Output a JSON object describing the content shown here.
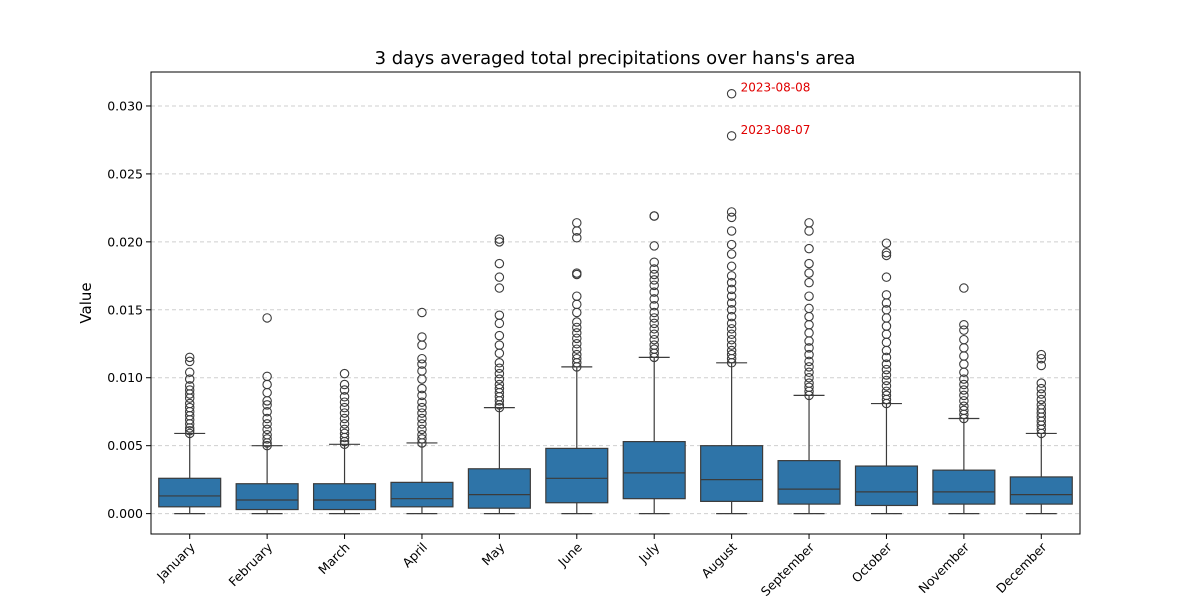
{
  "chart_data": {
    "type": "box",
    "title": "3 days averaged total precipitations over hans's area",
    "xlabel": "",
    "ylabel": "Value",
    "ylim": [
      -0.0015,
      0.0325
    ],
    "yticks": [
      0.0,
      0.005,
      0.01,
      0.015,
      0.02,
      0.025,
      0.03
    ],
    "ytick_labels": [
      "0.000",
      "0.005",
      "0.010",
      "0.015",
      "0.020",
      "0.025",
      "0.030"
    ],
    "grid": "y-dashed",
    "box_color": "#2e74a8",
    "annotation_color": "#e00000",
    "categories": [
      "January",
      "February",
      "March",
      "April",
      "May",
      "June",
      "July",
      "August",
      "September",
      "October",
      "November",
      "December"
    ],
    "boxes": [
      {
        "whislo": 0.0,
        "q1": 0.0005,
        "med": 0.0013,
        "q3": 0.0026,
        "whishi": 0.0059,
        "fliers": [
          0.0059,
          0.0061,
          0.0063,
          0.0066,
          0.0069,
          0.0072,
          0.0075,
          0.0078,
          0.0081,
          0.0085,
          0.0088,
          0.0091,
          0.0094,
          0.0099,
          0.0104,
          0.0112,
          0.0115
        ]
      },
      {
        "whislo": 0.0,
        "q1": 0.0003,
        "med": 0.001,
        "q3": 0.0022,
        "whishi": 0.005,
        "fliers": [
          0.005,
          0.0052,
          0.0055,
          0.0058,
          0.0062,
          0.0066,
          0.007,
          0.0075,
          0.008,
          0.0083,
          0.0089,
          0.0095,
          0.0101,
          0.0144
        ]
      },
      {
        "whislo": 0.0,
        "q1": 0.0003,
        "med": 0.001,
        "q3": 0.0022,
        "whishi": 0.0051,
        "fliers": [
          0.0051,
          0.0053,
          0.0056,
          0.0059,
          0.0062,
          0.0066,
          0.007,
          0.0074,
          0.0078,
          0.0082,
          0.0086,
          0.0091,
          0.0095,
          0.0103
        ]
      },
      {
        "whislo": 0.0,
        "q1": 0.0005,
        "med": 0.0011,
        "q3": 0.0023,
        "whishi": 0.0052,
        "fliers": [
          0.0052,
          0.0055,
          0.0058,
          0.0062,
          0.0066,
          0.007,
          0.0074,
          0.0078,
          0.0082,
          0.0087,
          0.0092,
          0.0099,
          0.0105,
          0.011,
          0.0114,
          0.0124,
          0.013,
          0.0148
        ]
      },
      {
        "whislo": 0.0,
        "q1": 0.0004,
        "med": 0.0014,
        "q3": 0.0033,
        "whishi": 0.0078,
        "fliers": [
          0.0078,
          0.008,
          0.0083,
          0.0086,
          0.0089,
          0.0092,
          0.0095,
          0.0099,
          0.0103,
          0.0107,
          0.0111,
          0.0118,
          0.0124,
          0.0131,
          0.014,
          0.0146,
          0.0166,
          0.0174,
          0.0184,
          0.02,
          0.0202
        ]
      },
      {
        "whislo": 0.0,
        "q1": 0.0008,
        "med": 0.0026,
        "q3": 0.0048,
        "whishi": 0.0108,
        "fliers": [
          0.0108,
          0.0111,
          0.0114,
          0.0117,
          0.0121,
          0.0125,
          0.0129,
          0.0133,
          0.0137,
          0.0141,
          0.0148,
          0.0154,
          0.016,
          0.0176,
          0.0177,
          0.0203,
          0.0208,
          0.0214
        ]
      },
      {
        "whislo": 0.0,
        "q1": 0.0011,
        "med": 0.003,
        "q3": 0.0053,
        "whishi": 0.0115,
        "fliers": [
          0.0115,
          0.0118,
          0.0121,
          0.0124,
          0.0128,
          0.0132,
          0.0136,
          0.014,
          0.0144,
          0.0148,
          0.0153,
          0.0158,
          0.0163,
          0.0168,
          0.0172,
          0.0176,
          0.018,
          0.0185,
          0.0197,
          0.0219,
          0.0219
        ]
      },
      {
        "whislo": 0.0,
        "q1": 0.0009,
        "med": 0.0025,
        "q3": 0.005,
        "whishi": 0.0111,
        "fliers": [
          0.0111,
          0.0114,
          0.0117,
          0.012,
          0.0124,
          0.0128,
          0.0132,
          0.0136,
          0.014,
          0.0145,
          0.015,
          0.0155,
          0.016,
          0.0165,
          0.017,
          0.0175,
          0.0182,
          0.0191,
          0.0198,
          0.0208,
          0.0218,
          0.0222,
          0.0278,
          0.0309
        ]
      },
      {
        "whislo": 0.0,
        "q1": 0.0007,
        "med": 0.0018,
        "q3": 0.0039,
        "whishi": 0.0087,
        "fliers": [
          0.0087,
          0.009,
          0.0093,
          0.0096,
          0.01,
          0.0104,
          0.0108,
          0.0112,
          0.0117,
          0.0122,
          0.0127,
          0.0133,
          0.0139,
          0.0145,
          0.0151,
          0.016,
          0.017,
          0.0177,
          0.0184,
          0.0195,
          0.0208,
          0.0214
        ]
      },
      {
        "whislo": 0.0,
        "q1": 0.0006,
        "med": 0.0016,
        "q3": 0.0035,
        "whishi": 0.0081,
        "fliers": [
          0.0081,
          0.0084,
          0.0087,
          0.009,
          0.0094,
          0.0098,
          0.0102,
          0.0106,
          0.011,
          0.0115,
          0.012,
          0.0126,
          0.0132,
          0.0138,
          0.0144,
          0.015,
          0.0155,
          0.0161,
          0.0174,
          0.019,
          0.0192,
          0.0199
        ]
      },
      {
        "whislo": 0.0,
        "q1": 0.0007,
        "med": 0.0016,
        "q3": 0.0032,
        "whishi": 0.007,
        "fliers": [
          0.007,
          0.0073,
          0.0076,
          0.0079,
          0.0083,
          0.0087,
          0.0091,
          0.0095,
          0.0099,
          0.0104,
          0.011,
          0.0116,
          0.0122,
          0.0128,
          0.0135,
          0.0139,
          0.0166
        ]
      },
      {
        "whislo": 0.0,
        "q1": 0.0007,
        "med": 0.0014,
        "q3": 0.0027,
        "whishi": 0.0059,
        "fliers": [
          0.0059,
          0.0062,
          0.0065,
          0.0068,
          0.0071,
          0.0074,
          0.0077,
          0.008,
          0.0084,
          0.0088,
          0.0092,
          0.0096,
          0.0109,
          0.0114,
          0.0117
        ]
      }
    ],
    "annotations": [
      {
        "category": "August",
        "value": 0.0309,
        "text": "2023-08-08"
      },
      {
        "category": "August",
        "value": 0.0278,
        "text": "2023-08-07"
      }
    ]
  }
}
